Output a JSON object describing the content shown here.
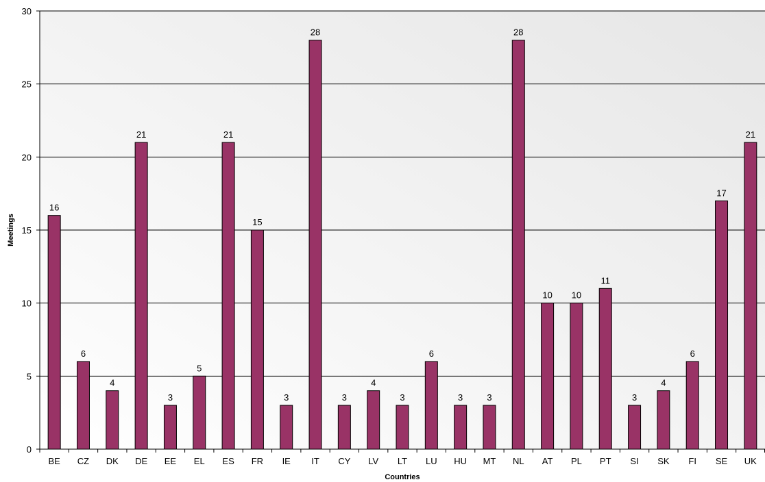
{
  "chart_data": {
    "type": "bar",
    "title": "",
    "xlabel": "Countries",
    "ylabel": "Meetings",
    "ylim": [
      0,
      30
    ],
    "yticks": [
      0,
      5,
      10,
      15,
      20,
      25,
      30
    ],
    "grid": "horizontal",
    "legend": "none",
    "categories": [
      "BE",
      "CZ",
      "DK",
      "DE",
      "EE",
      "EL",
      "ES",
      "FR",
      "IE",
      "IT",
      "CY",
      "LV",
      "LT",
      "LU",
      "HU",
      "MT",
      "NL",
      "AT",
      "PL",
      "PT",
      "SI",
      "SK",
      "FI",
      "SE",
      "UK"
    ],
    "values": [
      16,
      6,
      4,
      21,
      3,
      5,
      21,
      15,
      3,
      28,
      3,
      4,
      3,
      6,
      3,
      3,
      28,
      10,
      10,
      11,
      3,
      4,
      6,
      17,
      21
    ],
    "bar_color": "#993366",
    "plot_background": "#f2f2f2"
  }
}
